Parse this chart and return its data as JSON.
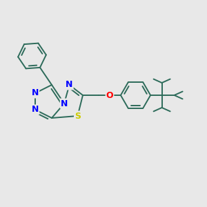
{
  "bg_color": "#e8e8e8",
  "bond_color": "#2d6b5a",
  "n_color": "#0000ff",
  "s_color": "#cccc00",
  "o_color": "#ff0000",
  "bond_width": 1.4,
  "figsize": [
    3.0,
    3.0
  ],
  "dpi": 100,
  "xlim": [
    0,
    10
  ],
  "ylim": [
    0,
    10
  ]
}
